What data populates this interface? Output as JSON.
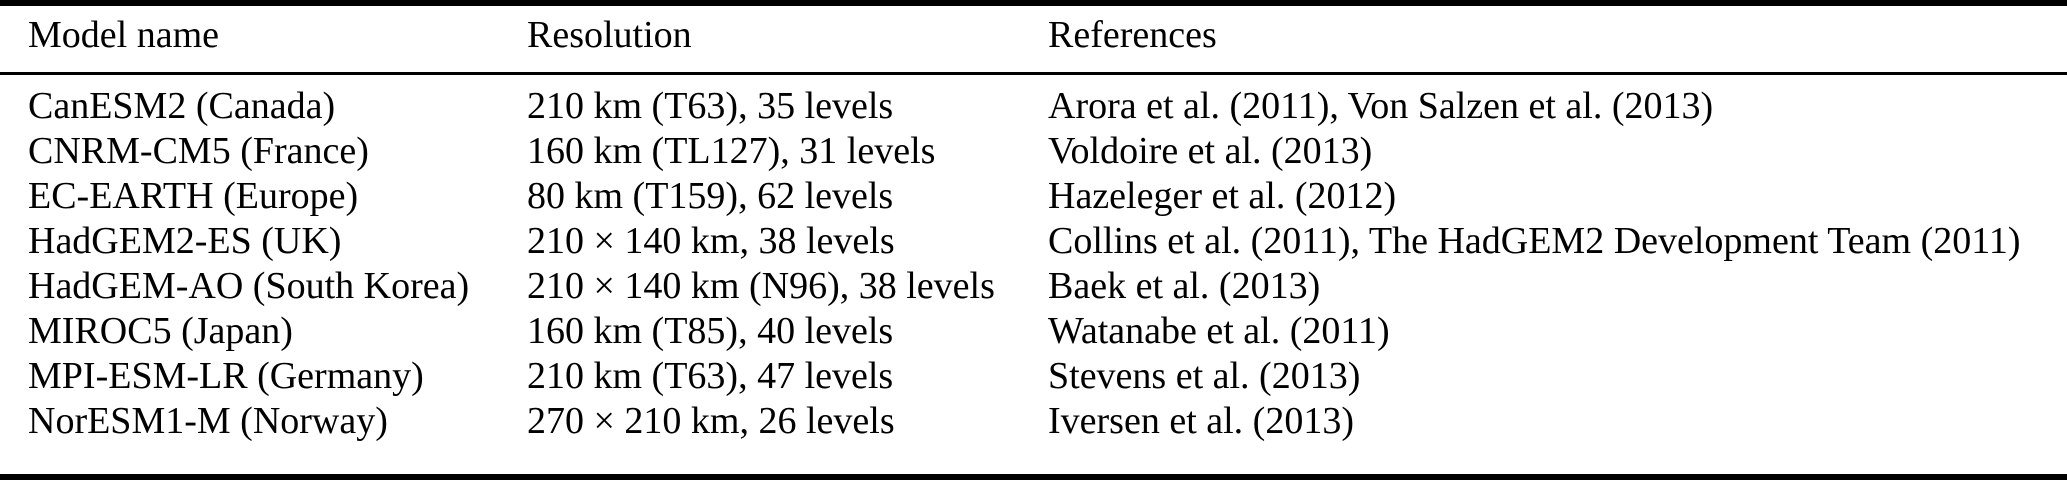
{
  "colors": {
    "text": "#000000",
    "background": "#ffffff",
    "rule": "#000000"
  },
  "table": {
    "columns": [
      "Model name",
      "Resolution",
      "References"
    ],
    "rows": [
      {
        "model": "CanESM2 (Canada)",
        "resolution": "210 km (T63), 35 levels",
        "references": "Arora et al. (2011), Von Salzen et al. (2013)"
      },
      {
        "model": "CNRM-CM5 (France)",
        "resolution": "160 km (TL127), 31 levels",
        "references": "Voldoire et al. (2013)"
      },
      {
        "model": "EC-EARTH (Europe)",
        "resolution": "80 km (T159), 62 levels",
        "references": "Hazeleger et al. (2012)"
      },
      {
        "model": "HadGEM2-ES (UK)",
        "resolution": "210 × 140 km, 38 levels",
        "references": "Collins et al. (2011), The HadGEM2 Development Team (2011)"
      },
      {
        "model": "HadGEM-AO (South Korea)",
        "resolution": "210 × 140 km (N96), 38 levels",
        "references": "Baek et al. (2013)"
      },
      {
        "model": "MIROC5 (Japan)",
        "resolution": "160 km (T85), 40 levels",
        "references": "Watanabe et al. (2011)"
      },
      {
        "model": "MPI-ESM-LR (Germany)",
        "resolution": "210 km (T63), 47 levels",
        "references": "Stevens et al. (2013)"
      },
      {
        "model": "NorESM1-M (Norway)",
        "resolution": "270 × 210 km, 26 levels",
        "references": "Iversen et al. (2013)"
      }
    ]
  }
}
